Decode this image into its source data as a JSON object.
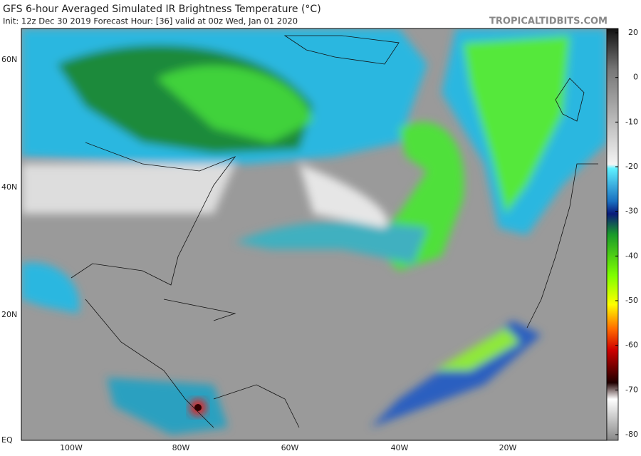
{
  "header": {
    "title": "GFS 6-hour Averaged Simulated IR Brightness Temperature (°C)",
    "subtitle": "Init: 12z Dec 30 2019   Forecast Hour: [36]   valid at 00z Wed, Jan 01 2020",
    "credit": "TROPICALTIDBITS.COM"
  },
  "map": {
    "lat_labels": [
      "60N",
      "40N",
      "20N",
      "EQ"
    ],
    "lon_labels": [
      "100W",
      "80W",
      "60W",
      "40W",
      "20W"
    ]
  },
  "colorbar": {
    "ticks": [
      20,
      0,
      -10,
      -20,
      -30,
      -40,
      -50,
      -60,
      -70,
      -80
    ]
  }
}
